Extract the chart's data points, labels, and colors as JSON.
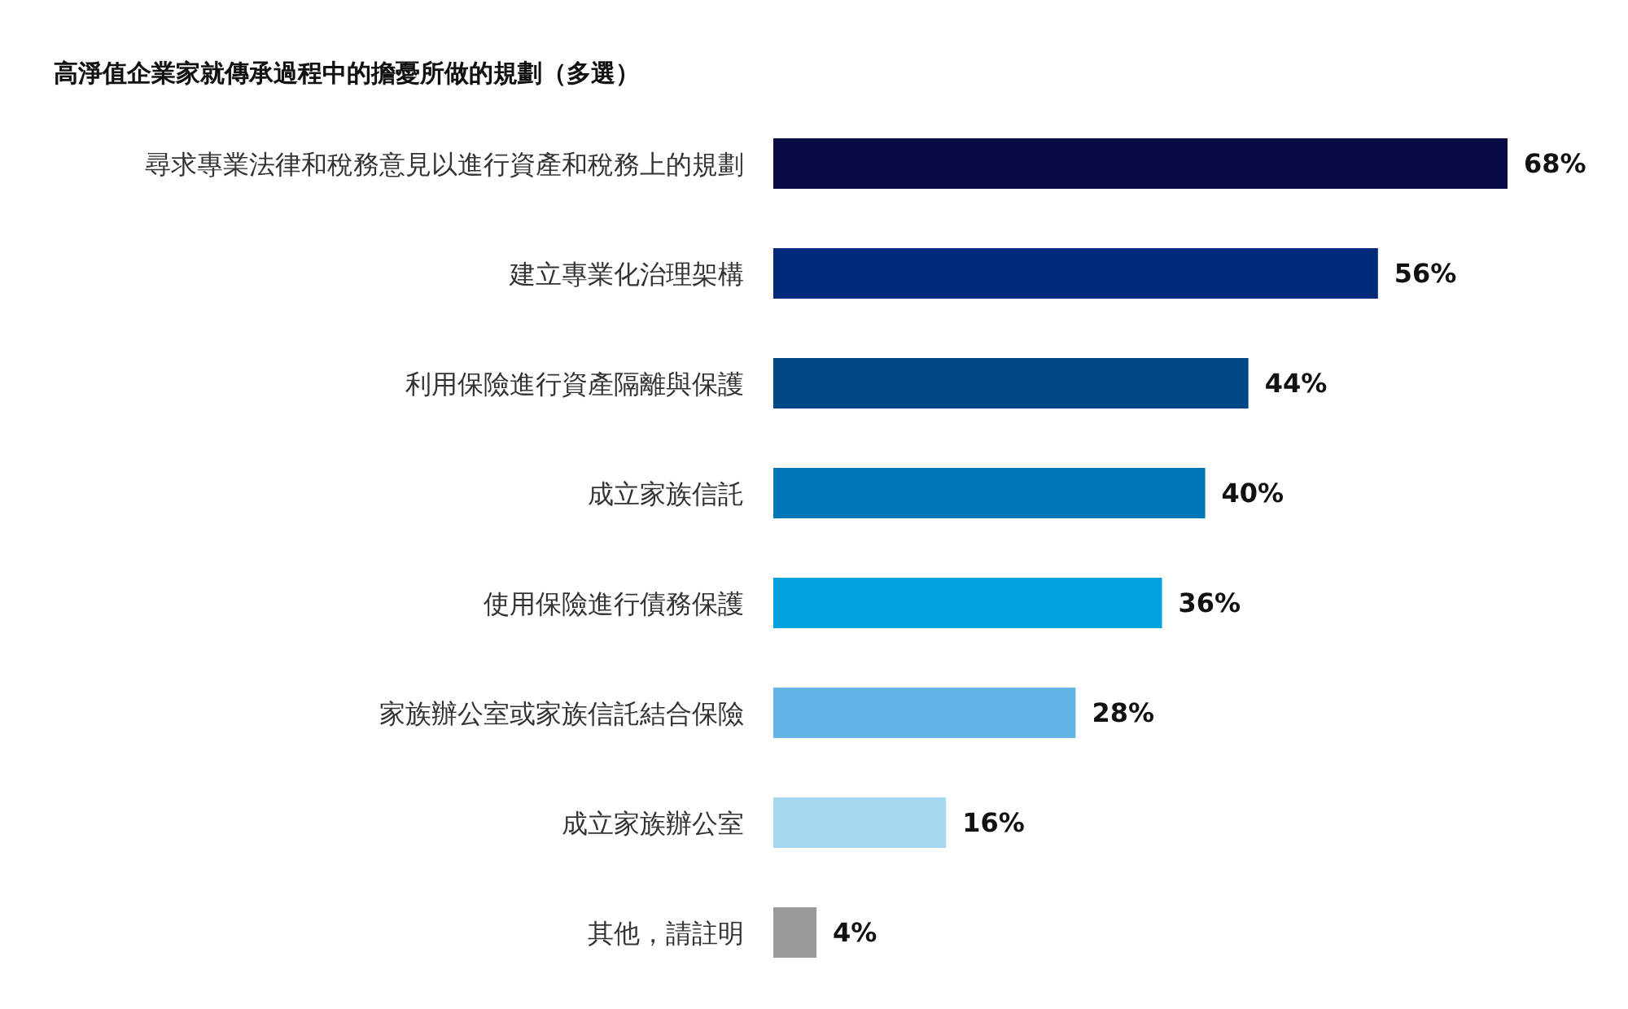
{
  "chart_data": {
    "type": "bar",
    "orientation": "horizontal",
    "data_labels": true,
    "title": "高淨值企業家就傳承過程中的擔憂所做的規劃（多選）",
    "categories": [
      "尋求專業法律和稅務意見以進行資產和稅務上的規劃",
      "建立專業化治理架構",
      "利用保險進行資產隔離與保護",
      "成立家族信託",
      "使用保險進行債務保護",
      "家族辦公室或家族信託結合保險",
      "成立家族辦公室",
      "其他，請註明"
    ],
    "values": [
      68,
      56,
      44,
      40,
      36,
      28,
      16,
      4
    ],
    "value_labels": [
      "68%",
      "56%",
      "44%",
      "40%",
      "36%",
      "28%",
      "16%",
      "4%"
    ],
    "colors": [
      "#0a0a45",
      "#00297a",
      "#004785",
      "#0076b6",
      "#00a3e0",
      "#62b5e5",
      "#a7d8f2",
      "#97999b"
    ],
    "grid": false,
    "legend": false
  }
}
